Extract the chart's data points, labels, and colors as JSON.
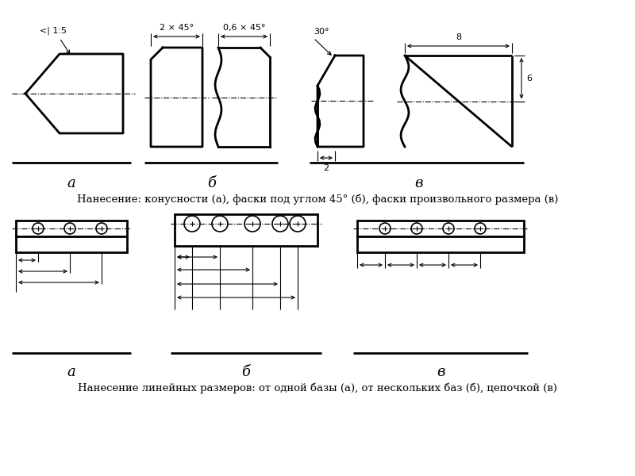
{
  "bg_color": "#ffffff",
  "line_color": "#000000",
  "title1": "Нанесение: конусности (а), фаски под углом 45° (б), фаски произвольного размера (в)",
  "title2": "Нанесение линейных размеров: от одной базы (а), от нескольких баз (б), цепочкой (в)",
  "label_a1": "а",
  "label_b1": "б",
  "label_v1": "в",
  "label_a2": "а",
  "label_b2": "б",
  "label_v2": "в"
}
